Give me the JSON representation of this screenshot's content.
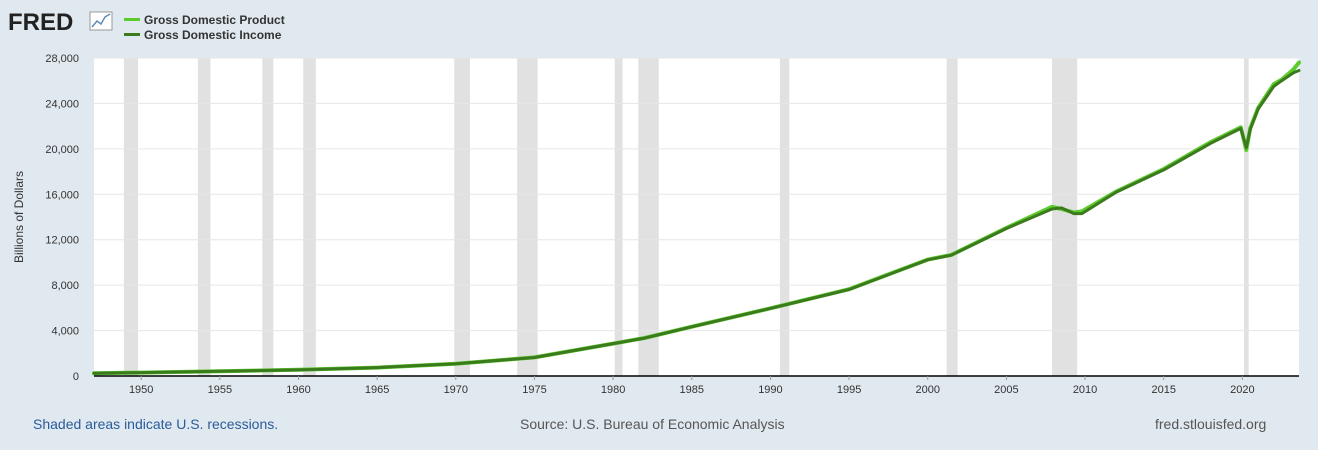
{
  "header": {
    "logo_text": "FRED",
    "logo_icon": "line-graph-icon"
  },
  "chart_data": {
    "type": "line",
    "title": "",
    "xlabel": "",
    "ylabel": "Billions of Dollars",
    "xlim": [
      1947,
      2023.6
    ],
    "ylim": [
      0,
      28000
    ],
    "yticks": [
      0,
      4000,
      8000,
      12000,
      16000,
      20000,
      24000,
      28000
    ],
    "ytick_labels": [
      "0",
      "4,000",
      "8,000",
      "12,000",
      "16,000",
      "20,000",
      "24,000",
      "28,000"
    ],
    "xticks": [
      1950,
      1955,
      1960,
      1965,
      1970,
      1975,
      1980,
      1985,
      1990,
      1995,
      2000,
      2005,
      2010,
      2015,
      2020
    ],
    "xtick_labels": [
      "1950",
      "1955",
      "1960",
      "1965",
      "1970",
      "1975",
      "1980",
      "1985",
      "1990",
      "1995",
      "2000",
      "2005",
      "2010",
      "2015",
      "2020"
    ],
    "grid": true,
    "legend_position": "top-left",
    "recessions": [
      [
        1948.9,
        1949.8
      ],
      [
        1953.6,
        1954.4
      ],
      [
        1957.7,
        1958.4
      ],
      [
        1960.3,
        1961.1
      ],
      [
        1969.9,
        1970.9
      ],
      [
        1973.9,
        1975.2
      ],
      [
        1980.1,
        1980.6
      ],
      [
        1981.6,
        1982.9
      ],
      [
        1990.6,
        1991.2
      ],
      [
        2001.2,
        2001.9
      ],
      [
        2007.9,
        2009.5
      ],
      [
        2020.1,
        2020.4
      ]
    ],
    "series": [
      {
        "name": "Gross Domestic Product",
        "color": "#5ccc2c",
        "x": [
          1947,
          1950,
          1955,
          1960,
          1965,
          1970,
          1975,
          1980,
          1982,
          1985,
          1990,
          1995,
          2000,
          2001.5,
          2005,
          2007.9,
          2008.5,
          2009.3,
          2009.8,
          2012,
          2015,
          2018,
          2019.9,
          2020.25,
          2020.5,
          2021,
          2022,
          2022.5,
          2023.25,
          2023.6
        ],
        "values": [
          243,
          300,
          426,
          543,
          743,
          1073,
          1637,
          2857,
          3343,
          4339,
          5963,
          7640,
          10251,
          10660,
          13039,
          14900,
          14700,
          14400,
          14500,
          16254,
          18225,
          20600,
          21900,
          19900,
          21800,
          23600,
          25700,
          26100,
          27000,
          27600
        ]
      },
      {
        "name": "Gross Domestic Income",
        "color": "#3c7a1e",
        "x": [
          1947,
          1950,
          1955,
          1960,
          1965,
          1970,
          1975,
          1980,
          1982,
          1985,
          1990,
          1995,
          2000,
          2001.5,
          2005,
          2007.9,
          2008.5,
          2009.3,
          2009.8,
          2012,
          2015,
          2018,
          2019.9,
          2020.25,
          2020.5,
          2021,
          2022,
          2022.5,
          2023.25,
          2023.6
        ],
        "values": [
          240,
          298,
          424,
          540,
          740,
          1070,
          1630,
          2850,
          3340,
          4330,
          5950,
          7620,
          10230,
          10640,
          12990,
          14700,
          14800,
          14300,
          14300,
          16200,
          18150,
          20500,
          21800,
          20100,
          21700,
          23500,
          25500,
          26000,
          26700,
          26900
        ]
      }
    ]
  },
  "footer": {
    "recession_note": "Shaded areas indicate U.S. recessions.",
    "source": "Source: U.S. Bureau of Economic Analysis",
    "site": "fred.stlouisfed.org"
  }
}
